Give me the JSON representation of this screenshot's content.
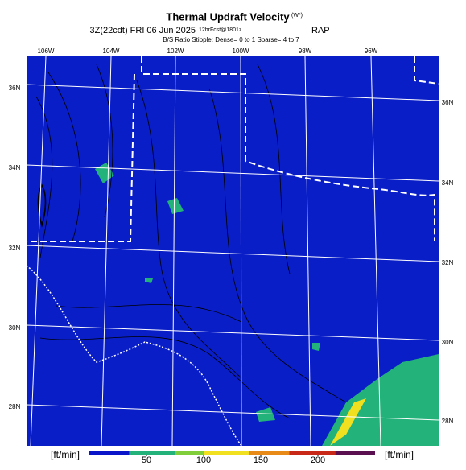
{
  "header": {
    "title": "Thermal Updraft Velocity",
    "title_sup": "(W*)",
    "run": "3Z(22cdt) FRI 06 Jun 2025",
    "forecast": "12hrFcst@1801z",
    "model": "RAP",
    "note": "B/S Ratio Stipple: Dense= 0 to 1 Sparse= 4 to 7"
  },
  "map": {
    "lon_labels": [
      "106W",
      "104W",
      "102W",
      "100W",
      "98W",
      "96W"
    ],
    "lat_labels_left": [
      "36N",
      "34N",
      "32N",
      "30N",
      "28N"
    ],
    "lat_labels_right": [
      "36N",
      "34N",
      "32N",
      "30N",
      "28N"
    ]
  },
  "colorbar": {
    "unit_left": "[ft/min]",
    "unit_right": "[ft/min]",
    "range": [
      0,
      250
    ],
    "ticks": [
      50,
      100,
      150,
      200
    ],
    "colors": [
      {
        "from": 0,
        "to": 35,
        "color": "#0a14c8"
      },
      {
        "from": 35,
        "to": 75,
        "color": "#22b27a"
      },
      {
        "from": 75,
        "to": 100,
        "color": "#7fce3a"
      },
      {
        "from": 100,
        "to": 140,
        "color": "#f0e020"
      },
      {
        "from": 140,
        "to": 175,
        "color": "#e88a18"
      },
      {
        "from": 175,
        "to": 215,
        "color": "#c82818"
      },
      {
        "from": 215,
        "to": 250,
        "color": "#5a1050"
      }
    ]
  }
}
